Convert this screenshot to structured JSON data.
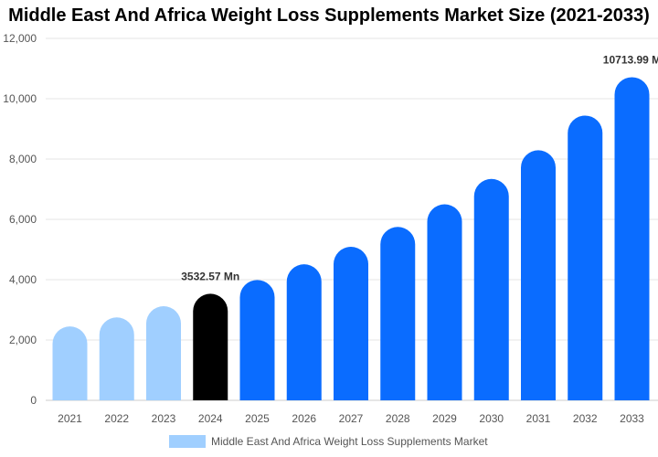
{
  "chart_data": {
    "type": "bar",
    "title": "Middle East And Africa Weight Loss Supplements Market Size (2021-2033)",
    "categories": [
      "2021",
      "2022",
      "2023",
      "2024",
      "2025",
      "2026",
      "2027",
      "2028",
      "2029",
      "2030",
      "2031",
      "2032",
      "2033"
    ],
    "series": [
      {
        "name": "Middle East And Africa Weight Loss Supplements Market",
        "values": [
          2450,
          2750,
          3120,
          3532.57,
          3990,
          4510,
          5090,
          5750,
          6500,
          7340,
          8290,
          9440,
          10713.99
        ]
      }
    ],
    "ylim": [
      0,
      12000
    ],
    "yticks": [
      "0",
      "2,000",
      "4,000",
      "6,000",
      "8,000",
      "10,000",
      "12,000"
    ],
    "ytick_values": [
      0,
      2000,
      4000,
      6000,
      8000,
      10000,
      12000
    ],
    "data_labels": [
      {
        "index": 3,
        "text": "3532.57 Mn"
      },
      {
        "index": 12,
        "text": "10713.99 M"
      }
    ],
    "colors": {
      "historic": "#a0cfff",
      "base_year": "#000000",
      "forecast": "#0a6cff",
      "legend": "#a0cfff",
      "grid": "#e6e6e6"
    },
    "grid": "horizontal",
    "legend_position": "bottom"
  }
}
